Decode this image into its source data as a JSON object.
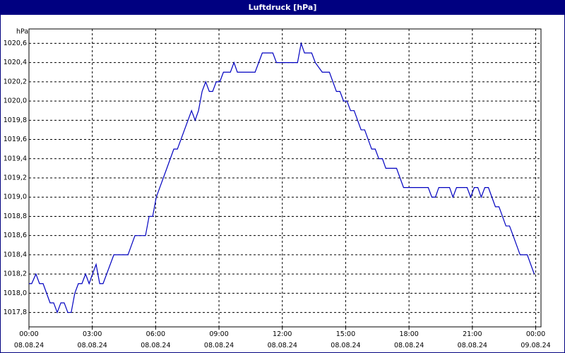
{
  "chart_data": {
    "type": "line",
    "title": "Luftdruck [hPa]",
    "y_label": "hPa",
    "x": [
      0,
      0.13,
      0.33,
      0.5,
      0.67,
      1.0,
      1.17,
      1.34,
      1.51,
      1.67,
      1.84,
      2.0,
      2.17,
      2.34,
      2.51,
      2.68,
      2.85,
      3.01,
      3.18,
      3.35,
      3.51,
      4.02,
      4.69,
      5.02,
      5.52,
      5.69,
      5.86,
      6.03,
      6.53,
      6.86,
      7.03,
      7.7,
      7.87,
      8.03,
      8.2,
      8.37,
      8.54,
      8.7,
      8.87,
      9.04,
      9.21,
      9.54,
      9.71,
      9.87,
      10.71,
      11.05,
      11.55,
      11.72,
      12.72,
      12.89,
      13.05,
      13.39,
      13.56,
      13.89,
      14.23,
      14.56,
      14.73,
      14.9,
      15.06,
      15.23,
      15.4,
      15.73,
      15.9,
      16.23,
      16.4,
      16.57,
      16.74,
      16.9,
      17.41,
      17.74,
      18.91,
      19.08,
      19.25,
      19.41,
      19.92,
      20.08,
      20.25,
      20.75,
      20.92,
      21.09,
      21.26,
      21.42,
      21.59,
      21.76,
      22.09,
      22.26,
      22.59,
      22.76,
      22.93,
      23.26,
      23.6,
      23.93
    ],
    "series": [
      {
        "name": "Luftdruck",
        "color": "#0000c0",
        "values": [
          1018.1,
          1018.1,
          1018.2,
          1018.1,
          1018.1,
          1017.9,
          1017.9,
          1017.8,
          1017.9,
          1017.9,
          1017.8,
          1017.8,
          1018.0,
          1018.1,
          1018.1,
          1018.2,
          1018.1,
          1018.2,
          1018.3,
          1018.1,
          1018.1,
          1018.4,
          1018.4,
          1018.6,
          1018.6,
          1018.8,
          1018.8,
          1019.0,
          1019.3,
          1019.5,
          1019.5,
          1019.9,
          1019.8,
          1019.9,
          1020.1,
          1020.2,
          1020.1,
          1020.1,
          1020.2,
          1020.2,
          1020.3,
          1020.3,
          1020.4,
          1020.3,
          1020.3,
          1020.5,
          1020.5,
          1020.4,
          1020.4,
          1020.6,
          1020.5,
          1020.5,
          1020.4,
          1020.3,
          1020.3,
          1020.1,
          1020.1,
          1020.0,
          1020.0,
          1019.9,
          1019.9,
          1019.7,
          1019.7,
          1019.5,
          1019.5,
          1019.4,
          1019.4,
          1019.3,
          1019.3,
          1019.1,
          1019.1,
          1019.0,
          1019.0,
          1019.1,
          1019.1,
          1019.0,
          1019.1,
          1019.1,
          1019.0,
          1019.1,
          1019.1,
          1019.0,
          1019.1,
          1019.1,
          1018.9,
          1018.9,
          1018.7,
          1018.7,
          1018.6,
          1018.4,
          1018.4,
          1018.2
        ]
      }
    ],
    "xlim": [
      0,
      24.25
    ],
    "ylim": [
      1017.65,
      1020.75
    ],
    "xticks": [
      {
        "value": 0,
        "label": "00:00\n08.08.24"
      },
      {
        "value": 3,
        "label": "03:00\n08.08.24"
      },
      {
        "value": 6,
        "label": "06:00\n08.08.24"
      },
      {
        "value": 9,
        "label": "09:00\n08.08.24"
      },
      {
        "value": 12,
        "label": "12:00\n08.08.24"
      },
      {
        "value": 15,
        "label": "15:00\n08.08.24"
      },
      {
        "value": 18,
        "label": "18:00\n08.08.24"
      },
      {
        "value": 21,
        "label": "21:00\n08.08.24"
      },
      {
        "value": 24,
        "label": "00:00\n09.08.24"
      }
    ],
    "yticks": [
      {
        "value": 1017.8,
        "label": "1017,8"
      },
      {
        "value": 1018,
        "label": "1018,0"
      },
      {
        "value": 1018.2,
        "label": "1018,2"
      },
      {
        "value": 1018.4,
        "label": "1018,4"
      },
      {
        "value": 1018.6,
        "label": "1018,6"
      },
      {
        "value": 1018.8,
        "label": "1018,8"
      },
      {
        "value": 1019,
        "label": "1019,0"
      },
      {
        "value": 1019.2,
        "label": "1019,2"
      },
      {
        "value": 1019.4,
        "label": "1019,4"
      },
      {
        "value": 1019.6,
        "label": "1019,6"
      },
      {
        "value": 1019.8,
        "label": "1019,8"
      },
      {
        "value": 1020,
        "label": "1020,0"
      },
      {
        "value": 1020.2,
        "label": "1020,2"
      },
      {
        "value": 1020.4,
        "label": "1020,4"
      },
      {
        "value": 1020.6,
        "label": "1020,6"
      }
    ],
    "grid": true
  }
}
